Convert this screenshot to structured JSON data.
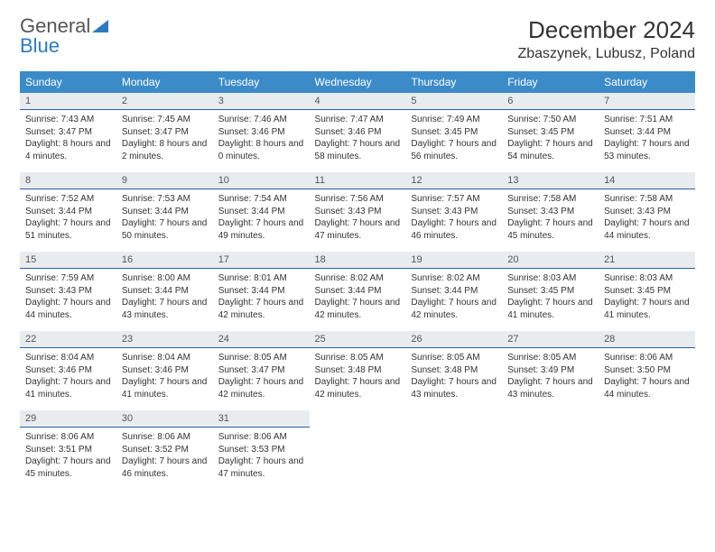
{
  "brand": {
    "name_part1": "General",
    "name_part2": "Blue"
  },
  "title": "December 2024",
  "location": "Zbaszynek, Lubusz, Poland",
  "colors": {
    "header_bg": "#3b8bc8",
    "header_text": "#ffffff",
    "daynum_bg": "#e9ecef",
    "daynum_border": "#2660a4",
    "brand_blue": "#2d7bc0"
  },
  "weekdays": [
    "Sunday",
    "Monday",
    "Tuesday",
    "Wednesday",
    "Thursday",
    "Friday",
    "Saturday"
  ],
  "weeks": [
    [
      {
        "n": "1",
        "sr": "Sunrise: 7:43 AM",
        "ss": "Sunset: 3:47 PM",
        "dl": "Daylight: 8 hours and 4 minutes."
      },
      {
        "n": "2",
        "sr": "Sunrise: 7:45 AM",
        "ss": "Sunset: 3:47 PM",
        "dl": "Daylight: 8 hours and 2 minutes."
      },
      {
        "n": "3",
        "sr": "Sunrise: 7:46 AM",
        "ss": "Sunset: 3:46 PM",
        "dl": "Daylight: 8 hours and 0 minutes."
      },
      {
        "n": "4",
        "sr": "Sunrise: 7:47 AM",
        "ss": "Sunset: 3:46 PM",
        "dl": "Daylight: 7 hours and 58 minutes."
      },
      {
        "n": "5",
        "sr": "Sunrise: 7:49 AM",
        "ss": "Sunset: 3:45 PM",
        "dl": "Daylight: 7 hours and 56 minutes."
      },
      {
        "n": "6",
        "sr": "Sunrise: 7:50 AM",
        "ss": "Sunset: 3:45 PM",
        "dl": "Daylight: 7 hours and 54 minutes."
      },
      {
        "n": "7",
        "sr": "Sunrise: 7:51 AM",
        "ss": "Sunset: 3:44 PM",
        "dl": "Daylight: 7 hours and 53 minutes."
      }
    ],
    [
      {
        "n": "8",
        "sr": "Sunrise: 7:52 AM",
        "ss": "Sunset: 3:44 PM",
        "dl": "Daylight: 7 hours and 51 minutes."
      },
      {
        "n": "9",
        "sr": "Sunrise: 7:53 AM",
        "ss": "Sunset: 3:44 PM",
        "dl": "Daylight: 7 hours and 50 minutes."
      },
      {
        "n": "10",
        "sr": "Sunrise: 7:54 AM",
        "ss": "Sunset: 3:44 PM",
        "dl": "Daylight: 7 hours and 49 minutes."
      },
      {
        "n": "11",
        "sr": "Sunrise: 7:56 AM",
        "ss": "Sunset: 3:43 PM",
        "dl": "Daylight: 7 hours and 47 minutes."
      },
      {
        "n": "12",
        "sr": "Sunrise: 7:57 AM",
        "ss": "Sunset: 3:43 PM",
        "dl": "Daylight: 7 hours and 46 minutes."
      },
      {
        "n": "13",
        "sr": "Sunrise: 7:58 AM",
        "ss": "Sunset: 3:43 PM",
        "dl": "Daylight: 7 hours and 45 minutes."
      },
      {
        "n": "14",
        "sr": "Sunrise: 7:58 AM",
        "ss": "Sunset: 3:43 PM",
        "dl": "Daylight: 7 hours and 44 minutes."
      }
    ],
    [
      {
        "n": "15",
        "sr": "Sunrise: 7:59 AM",
        "ss": "Sunset: 3:43 PM",
        "dl": "Daylight: 7 hours and 44 minutes."
      },
      {
        "n": "16",
        "sr": "Sunrise: 8:00 AM",
        "ss": "Sunset: 3:44 PM",
        "dl": "Daylight: 7 hours and 43 minutes."
      },
      {
        "n": "17",
        "sr": "Sunrise: 8:01 AM",
        "ss": "Sunset: 3:44 PM",
        "dl": "Daylight: 7 hours and 42 minutes."
      },
      {
        "n": "18",
        "sr": "Sunrise: 8:02 AM",
        "ss": "Sunset: 3:44 PM",
        "dl": "Daylight: 7 hours and 42 minutes."
      },
      {
        "n": "19",
        "sr": "Sunrise: 8:02 AM",
        "ss": "Sunset: 3:44 PM",
        "dl": "Daylight: 7 hours and 42 minutes."
      },
      {
        "n": "20",
        "sr": "Sunrise: 8:03 AM",
        "ss": "Sunset: 3:45 PM",
        "dl": "Daylight: 7 hours and 41 minutes."
      },
      {
        "n": "21",
        "sr": "Sunrise: 8:03 AM",
        "ss": "Sunset: 3:45 PM",
        "dl": "Daylight: 7 hours and 41 minutes."
      }
    ],
    [
      {
        "n": "22",
        "sr": "Sunrise: 8:04 AM",
        "ss": "Sunset: 3:46 PM",
        "dl": "Daylight: 7 hours and 41 minutes."
      },
      {
        "n": "23",
        "sr": "Sunrise: 8:04 AM",
        "ss": "Sunset: 3:46 PM",
        "dl": "Daylight: 7 hours and 41 minutes."
      },
      {
        "n": "24",
        "sr": "Sunrise: 8:05 AM",
        "ss": "Sunset: 3:47 PM",
        "dl": "Daylight: 7 hours and 42 minutes."
      },
      {
        "n": "25",
        "sr": "Sunrise: 8:05 AM",
        "ss": "Sunset: 3:48 PM",
        "dl": "Daylight: 7 hours and 42 minutes."
      },
      {
        "n": "26",
        "sr": "Sunrise: 8:05 AM",
        "ss": "Sunset: 3:48 PM",
        "dl": "Daylight: 7 hours and 43 minutes."
      },
      {
        "n": "27",
        "sr": "Sunrise: 8:05 AM",
        "ss": "Sunset: 3:49 PM",
        "dl": "Daylight: 7 hours and 43 minutes."
      },
      {
        "n": "28",
        "sr": "Sunrise: 8:06 AM",
        "ss": "Sunset: 3:50 PM",
        "dl": "Daylight: 7 hours and 44 minutes."
      }
    ],
    [
      {
        "n": "29",
        "sr": "Sunrise: 8:06 AM",
        "ss": "Sunset: 3:51 PM",
        "dl": "Daylight: 7 hours and 45 minutes."
      },
      {
        "n": "30",
        "sr": "Sunrise: 8:06 AM",
        "ss": "Sunset: 3:52 PM",
        "dl": "Daylight: 7 hours and 46 minutes."
      },
      {
        "n": "31",
        "sr": "Sunrise: 8:06 AM",
        "ss": "Sunset: 3:53 PM",
        "dl": "Daylight: 7 hours and 47 minutes."
      },
      null,
      null,
      null,
      null
    ]
  ]
}
